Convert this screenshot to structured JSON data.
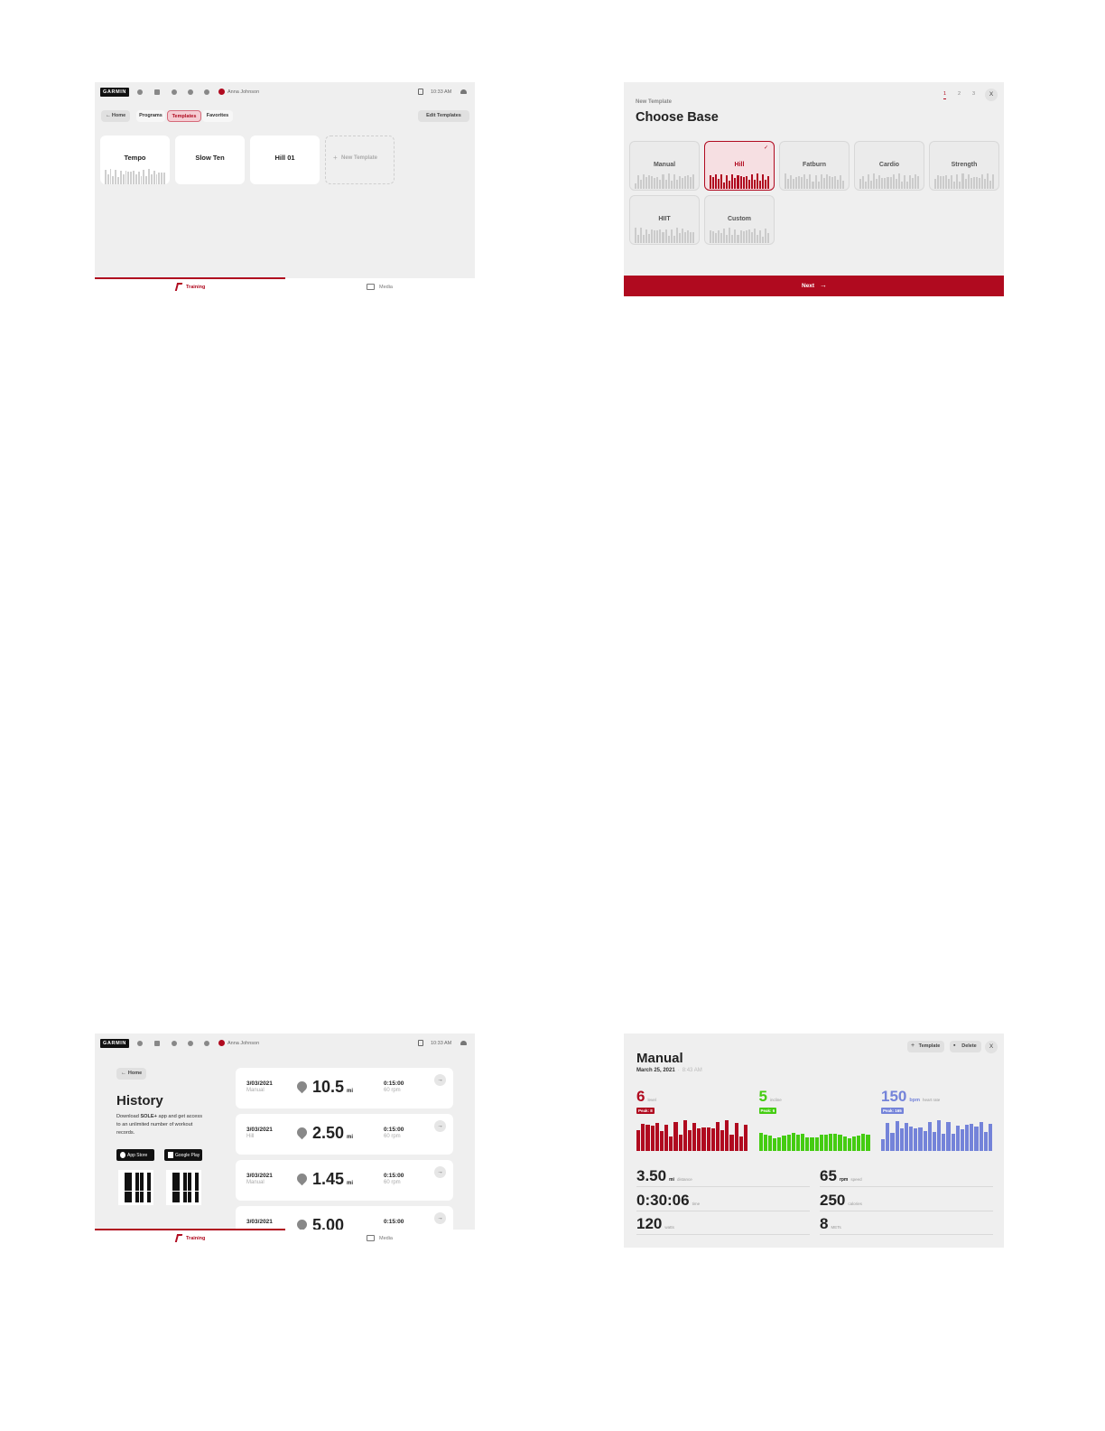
{
  "header": {
    "logo": "GARMIN",
    "user": "Anna Johnson",
    "time": "10:33 AM"
  },
  "bottom_tabs": [
    "Training",
    "Media"
  ],
  "templates_screen": {
    "back": "Home",
    "tabs": [
      "Programs",
      "Templates",
      "Favorites"
    ],
    "edit": "Edit Templates",
    "cards": [
      "Tempo",
      "Slow Ten",
      "Hill 01"
    ],
    "new_card": "New Template"
  },
  "choose_base_screen": {
    "eyebrow": "New Template",
    "title": "Choose Base",
    "steps": [
      "1",
      "2",
      "3"
    ],
    "close": "X",
    "bases": [
      "Manual",
      "Hill",
      "Fatburn",
      "Cardio",
      "Strength",
      "HIIT",
      "Custom"
    ],
    "next": "Next"
  },
  "history_screen": {
    "back": "Home",
    "title": "History",
    "description": [
      "Download ",
      "SOLE+",
      " app and get access to an unlimited number of workout records."
    ],
    "badges": [
      "App Store",
      "Google Play"
    ],
    "records": [
      {
        "date": "3/03/2021",
        "program": "Manual",
        "distance": "10.5",
        "unit": "mi",
        "time": "0:15:00",
        "cadence": "60 rpm"
      },
      {
        "date": "3/03/2021",
        "program": "Hill",
        "distance": "2.50",
        "unit": "mi",
        "time": "0:15:00",
        "cadence": "60 rpm"
      },
      {
        "date": "3/03/2021",
        "program": "Manual",
        "distance": "1.45",
        "unit": "mi",
        "time": "0:15:00",
        "cadence": "60 rpm"
      },
      {
        "date": "3/03/2021",
        "distance": "5.00",
        "time": "0:15:00"
      }
    ]
  },
  "workout_detail_screen": {
    "title": "Manual",
    "date": "March 25, 2021",
    "time": "8:43 AM",
    "buttons": [
      "Template",
      "Delete"
    ],
    "close": "X",
    "metrics": [
      {
        "value": "6",
        "label": "level",
        "peak": "Peak: 8"
      },
      {
        "value": "5",
        "label": "incline",
        "peak": "Peak: 6"
      },
      {
        "value": "150",
        "unit": "bpm",
        "label": "heart rate",
        "peak": "Peak: 165"
      }
    ],
    "stats": [
      {
        "value": "3.50",
        "unit": "mi",
        "label": "distance"
      },
      {
        "value": "65",
        "unit": "rpm",
        "label": "speed"
      },
      {
        "value": "0:30:06",
        "label": "time"
      },
      {
        "value": "250",
        "label": "calories"
      },
      {
        "value": "120",
        "label": "watts"
      },
      {
        "value": "8",
        "label": "METs"
      }
    ]
  }
}
